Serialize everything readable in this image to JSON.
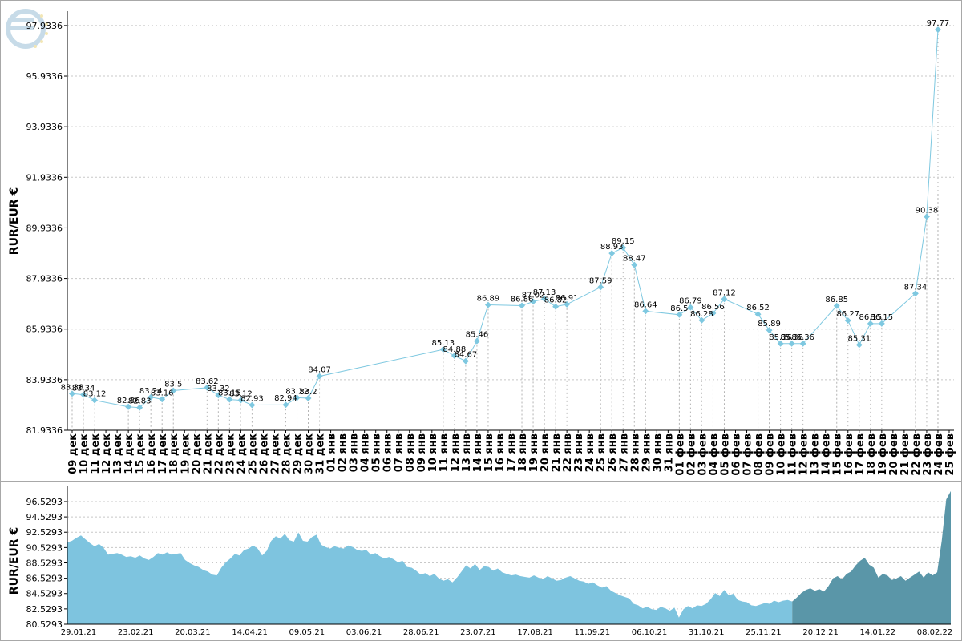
{
  "colors": {
    "line": "#7ec8e0",
    "area_light": "#7ec4df",
    "area_dark": "#5a96a8",
    "grid": "#c8c8c8",
    "axis": "#000000"
  },
  "logo_icon": "euro-logo-icon",
  "chart_data": [
    {
      "type": "line",
      "ylabel": "RUR/EUR €",
      "y_ticks": [
        "81.9336",
        "83.9336",
        "85.9336",
        "87.9336",
        "89.9336",
        "91.9336",
        "93.9336",
        "95.9336",
        "97.9336"
      ],
      "ylim": [
        81.9336,
        98.5
      ],
      "grid": true,
      "categories": [
        "09 дек",
        "10 дек",
        "11 дек",
        "12 дек",
        "13 дек",
        "14 дек",
        "15 дек",
        "16 дек",
        "17 дек",
        "18 дек",
        "19 дек",
        "20 дек",
        "21 дек",
        "22 дек",
        "23 дек",
        "24 дек",
        "25 дек",
        "26 дек",
        "27 дек",
        "28 дек",
        "29 дек",
        "30 дек",
        "31 дек",
        "01 янв",
        "02 янв",
        "03 янв",
        "04 янв",
        "05 янв",
        "06 янв",
        "07 янв",
        "08 янв",
        "09 янв",
        "10 янв",
        "11 янв",
        "12 янв",
        "13 янв",
        "14 янв",
        "15 янв",
        "16 янв",
        "17 янв",
        "18 янв",
        "19 янв",
        "20 янв",
        "21 янв",
        "22 янв",
        "23 янв",
        "24 янв",
        "25 янв",
        "26 янв",
        "27 янв",
        "28 янв",
        "29 янв",
        "30 янв",
        "31 янв",
        "01 фев",
        "02 фев",
        "03 фев",
        "04 фев",
        "05 фев",
        "06 фев",
        "07 фев",
        "08 фев",
        "09 фев",
        "10 фев",
        "11 фев",
        "12 фев",
        "13 фев",
        "14 фев",
        "15 фев",
        "16 фев",
        "17 фев",
        "18 фев",
        "19 фев",
        "20 фев",
        "21 фев",
        "22 фев",
        "23 фев",
        "24 фев",
        "25 фев"
      ],
      "points": [
        {
          "i": 0,
          "value": 83.38,
          "label": "83.38"
        },
        {
          "i": 1,
          "value": 83.34,
          "label": "83.34"
        },
        {
          "i": 2,
          "value": 83.12,
          "label": "83.12"
        },
        {
          "i": 5,
          "value": 82.86,
          "label": "82.86"
        },
        {
          "i": 6,
          "value": 82.83,
          "label": "82.83"
        },
        {
          "i": 7,
          "value": 83.24,
          "label": "83.24"
        },
        {
          "i": 8,
          "value": 83.16,
          "label": "83.16"
        },
        {
          "i": 9,
          "value": 83.5,
          "label": "83.5"
        },
        {
          "i": 12,
          "value": 83.62,
          "label": "83.62"
        },
        {
          "i": 13,
          "value": 83.32,
          "label": "83.32"
        },
        {
          "i": 14,
          "value": 83.15,
          "label": "83.15"
        },
        {
          "i": 15,
          "value": 83.12,
          "label": "83.12"
        },
        {
          "i": 16,
          "value": 82.93,
          "label": "82.93"
        },
        {
          "i": 19,
          "value": 82.94,
          "label": "82.94"
        },
        {
          "i": 20,
          "value": 83.22,
          "label": "83.22"
        },
        {
          "i": 21,
          "value": 83.2,
          "label": "83.2"
        },
        {
          "i": 22,
          "value": 84.07,
          "label": "84.07"
        },
        {
          "i": 33,
          "value": 85.13,
          "label": "85.13"
        },
        {
          "i": 34,
          "value": 84.88,
          "label": "84.88"
        },
        {
          "i": 35,
          "value": 84.67,
          "label": "84.67"
        },
        {
          "i": 36,
          "value": 85.46,
          "label": "85.46"
        },
        {
          "i": 37,
          "value": 86.89,
          "label": "86.89"
        },
        {
          "i": 40,
          "value": 86.86,
          "label": "86.86"
        },
        {
          "i": 41,
          "value": 87.02,
          "label": "87.02"
        },
        {
          "i": 42,
          "value": 87.13,
          "label": "87.13"
        },
        {
          "i": 43,
          "value": 86.82,
          "label": "86.82"
        },
        {
          "i": 44,
          "value": 86.91,
          "label": "86.91"
        },
        {
          "i": 47,
          "value": 87.59,
          "label": "87.59"
        },
        {
          "i": 48,
          "value": 88.93,
          "label": "88.93"
        },
        {
          "i": 49,
          "value": 89.15,
          "label": "89.15"
        },
        {
          "i": 50,
          "value": 88.47,
          "label": "88.47"
        },
        {
          "i": 51,
          "value": 86.64,
          "label": "86.64"
        },
        {
          "i": 54,
          "value": 86.5,
          "label": "86.5"
        },
        {
          "i": 55,
          "value": 86.79,
          "label": "86.79"
        },
        {
          "i": 56,
          "value": 86.28,
          "label": "86.28"
        },
        {
          "i": 57,
          "value": 86.56,
          "label": "86.56"
        },
        {
          "i": 58,
          "value": 87.12,
          "label": "87.12"
        },
        {
          "i": 61,
          "value": 86.52,
          "label": "86.52"
        },
        {
          "i": 62,
          "value": 85.89,
          "label": "85.89"
        },
        {
          "i": 63,
          "value": 85.36,
          "label": "85.36"
        },
        {
          "i": 64,
          "value": 85.36,
          "label": "85.36"
        },
        {
          "i": 65,
          "value": 85.36,
          "label": "85.36"
        },
        {
          "i": 68,
          "value": 86.85,
          "label": "86.85"
        },
        {
          "i": 69,
          "value": 86.27,
          "label": "86.27"
        },
        {
          "i": 70,
          "value": 85.31,
          "label": "85.31"
        },
        {
          "i": 71,
          "value": 86.15,
          "label": "86.15"
        },
        {
          "i": 72,
          "value": 86.15,
          "label": "86.15"
        },
        {
          "i": 75,
          "value": 87.34,
          "label": "87.34"
        },
        {
          "i": 76,
          "value": 90.38,
          "label": "90.38"
        },
        {
          "i": 77,
          "value": 97.77,
          "label": "97.77"
        }
      ]
    },
    {
      "type": "area",
      "ylabel": "RUR/EUR €",
      "y_ticks": [
        "80.5293",
        "82.5293",
        "84.5293",
        "86.5293",
        "88.5293",
        "90.5293",
        "92.5293",
        "94.5293",
        "96.5293"
      ],
      "ylim": [
        80.5293,
        98.2
      ],
      "grid": true,
      "x_ticks": [
        "29.01.21",
        "23.02.21",
        "20.03.21",
        "14.04.21",
        "09.05.21",
        "03.06.21",
        "28.06.21",
        "23.07.21",
        "17.08.21",
        "11.09.21",
        "06.10.21",
        "31.10.21",
        "25.11.21",
        "20.12.21",
        "14.01.22",
        "08.02.22"
      ],
      "highlight_from": 0.818,
      "values": [
        91.2,
        91.4,
        91.8,
        92.1,
        91.6,
        91.1,
        90.7,
        91.0,
        90.5,
        89.6,
        89.7,
        89.8,
        89.6,
        89.3,
        89.4,
        89.2,
        89.5,
        89.1,
        88.9,
        89.3,
        89.8,
        89.6,
        89.9,
        89.6,
        89.7,
        89.8,
        88.9,
        88.5,
        88.2,
        88.0,
        87.6,
        87.4,
        87.0,
        86.9,
        87.9,
        88.6,
        89.1,
        89.7,
        89.5,
        90.2,
        90.4,
        90.8,
        90.4,
        89.5,
        90.1,
        91.4,
        92.0,
        91.7,
        92.3,
        91.5,
        91.3,
        92.5,
        91.4,
        91.3,
        91.9,
        92.2,
        90.9,
        90.6,
        90.4,
        90.7,
        90.5,
        90.4,
        90.8,
        90.6,
        90.2,
        90.1,
        90.2,
        89.6,
        89.8,
        89.4,
        89.1,
        89.3,
        89.0,
        88.6,
        88.8,
        88.0,
        87.9,
        87.5,
        87.0,
        87.2,
        86.8,
        87.1,
        86.5,
        86.2,
        86.4,
        86.0,
        86.6,
        87.4,
        88.2,
        87.8,
        88.4,
        87.6,
        88.1,
        88.0,
        87.5,
        87.8,
        87.3,
        87.1,
        86.9,
        87.0,
        86.8,
        86.7,
        86.6,
        86.9,
        86.6,
        86.4,
        86.8,
        86.5,
        86.2,
        86.3,
        86.6,
        86.8,
        86.5,
        86.2,
        86.1,
        85.8,
        86.0,
        85.6,
        85.3,
        85.5,
        84.9,
        84.6,
        84.3,
        84.1,
        83.9,
        83.2,
        83.0,
        82.6,
        82.8,
        82.5,
        82.4,
        82.8,
        82.6,
        82.3,
        82.7,
        81.4,
        82.5,
        82.9,
        82.6,
        83.0,
        82.9,
        83.2,
        83.8,
        84.6,
        84.2,
        85.0,
        84.3,
        84.5,
        83.7,
        83.5,
        83.4,
        83.0,
        82.9,
        83.1,
        83.3,
        83.2,
        83.6,
        83.4,
        83.6,
        83.7,
        83.5,
        84.0,
        84.6,
        85.0,
        85.2,
        84.9,
        85.1,
        84.8,
        85.5,
        86.5,
        86.8,
        86.4,
        87.1,
        87.4,
        88.2,
        88.8,
        89.2,
        88.3,
        87.9,
        86.6,
        87.1,
        86.9,
        86.3,
        86.5,
        86.8,
        86.2,
        86.6,
        87.0,
        87.4,
        86.6,
        87.3,
        86.9,
        87.3,
        91.4,
        96.8,
        97.9
      ]
    }
  ]
}
